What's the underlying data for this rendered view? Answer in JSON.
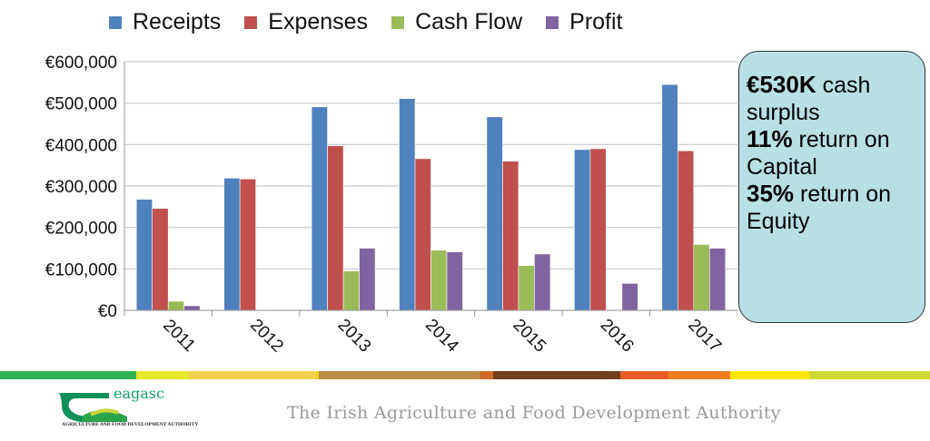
{
  "chart_data": {
    "type": "bar",
    "categories": [
      "2011",
      "2012",
      "2013",
      "2014",
      "2015",
      "2016",
      "2017"
    ],
    "series": [
      {
        "name": "Receipts",
        "color": "#4f81bd",
        "values": [
          268000,
          319000,
          491000,
          511000,
          467000,
          388000,
          545000
        ]
      },
      {
        "name": "Expenses",
        "color": "#c0504d",
        "values": [
          246000,
          317000,
          397000,
          366000,
          360000,
          390000,
          385000
        ]
      },
      {
        "name": "Cash Flow",
        "color": "#9bbb59",
        "values": [
          22000,
          1000,
          95000,
          145000,
          108000,
          0,
          159000
        ]
      },
      {
        "name": "Profit",
        "color": "#8064a2",
        "values": [
          11000,
          0,
          150000,
          141000,
          136000,
          65000,
          150000
        ]
      }
    ],
    "ylim": [
      0,
      600000
    ],
    "yticks": [
      "€0",
      "€100,000",
      "€200,000",
      "€300,000",
      "€400,000",
      "€500,000",
      "€600,000"
    ],
    "grid": true,
    "legend": "top"
  },
  "callout": {
    "l1b": "€530K",
    "l1": " cash surplus",
    "l2b": "11%",
    "l2": " return on Capital",
    "l3b": "35%",
    "l3": " return on Equity"
  },
  "footer": {
    "logo_text": "eagasc",
    "logo_sub": "AGRICULTURE AND FOOD DEVELOPMENT AUTHORITY",
    "tagline": "The Irish Agriculture and Food Development Authority",
    "stripe_colors": [
      "#2fb152",
      "#e6e82a",
      "#f2d24c",
      "#bd8a45",
      "#d2682a",
      "#743f1c",
      "#e55f24",
      "#ee7d22",
      "#fde500",
      "#cfd934"
    ]
  }
}
